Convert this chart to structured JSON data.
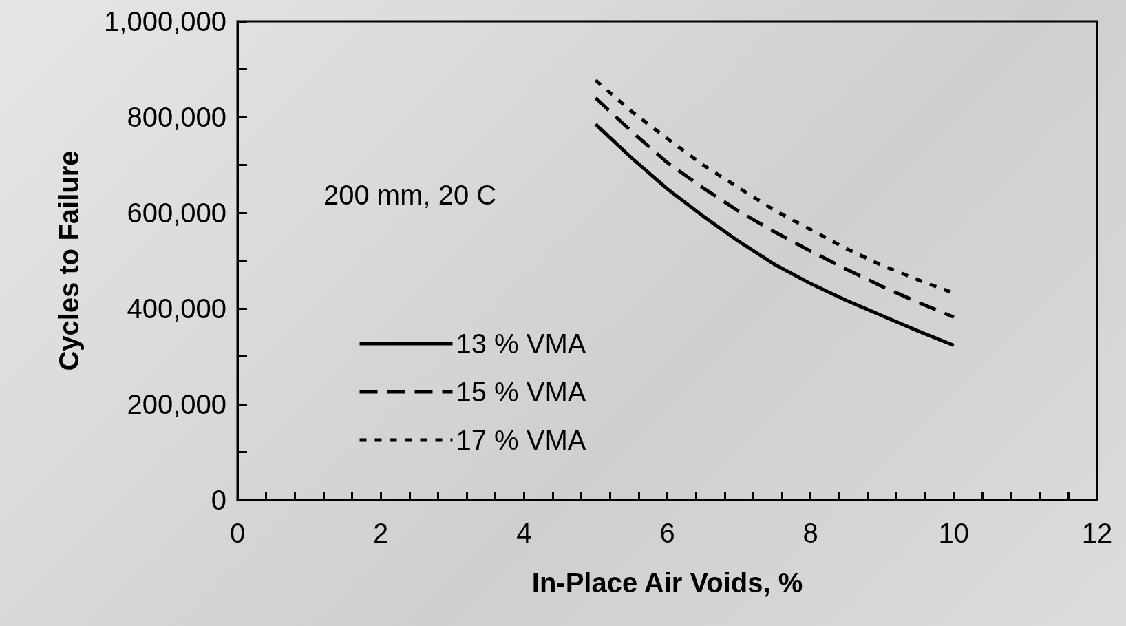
{
  "chart_data": {
    "type": "line",
    "xlabel": "In-Place Air Voids, %",
    "ylabel": "Cycles to Failure",
    "annotations": [
      "200 mm, 20 C"
    ],
    "x": [
      5,
      5.5,
      6,
      6.5,
      7,
      7.5,
      8,
      8.5,
      9,
      9.5,
      10
    ],
    "series": [
      {
        "name": "13 % VMA",
        "color": "#000000",
        "line_style": "solid",
        "values": [
          785000,
          715000,
          650000,
          593000,
          540000,
          492000,
          452000,
          417000,
          385000,
          353000,
          323000
        ]
      },
      {
        "name": "15 % VMA",
        "color": "#000000",
        "line_style": "dashed",
        "values": [
          840000,
          770000,
          705000,
          652000,
          603000,
          560000,
          520000,
          482000,
          446000,
          413000,
          382000
        ]
      },
      {
        "name": "17 % VMA",
        "color": "#000000",
        "line_style": "dotted",
        "values": [
          877000,
          812000,
          755000,
          700000,
          652000,
          605000,
          565000,
          525000,
          490000,
          460000,
          432000
        ]
      }
    ],
    "xlim": [
      0,
      12
    ],
    "xticks": [
      0,
      2,
      4,
      6,
      8,
      10,
      12
    ],
    "ylim": [
      0,
      1000000
    ],
    "yticks": [
      0,
      {
        "value": 200000,
        "label": "200,000"
      },
      {
        "value": 400000,
        "label": "400,000"
      },
      {
        "value": 600000,
        "label": "600,000"
      },
      {
        "value": 800000,
        "label": "800,000"
      },
      {
        "value": 1000000,
        "label": "1,000,000"
      }
    ],
    "grid": false,
    "legend": "bottom left",
    "marker": "none"
  }
}
